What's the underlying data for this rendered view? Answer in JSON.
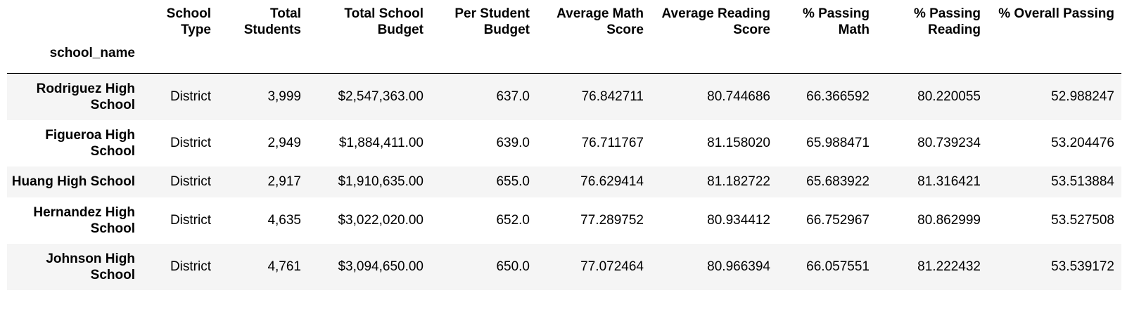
{
  "table": {
    "index_name": "school_name",
    "columns": [
      "School Type",
      "Total Students",
      "Total School Budget",
      "Per Student Budget",
      "Average Math Score",
      "Average Reading Score",
      "% Passing Math",
      "% Passing Reading",
      "% Overall Passing"
    ],
    "rows": [
      {
        "school_name": "Rodriguez High School",
        "values": [
          "District",
          "3,999",
          "$2,547,363.00",
          "637.0",
          "76.842711",
          "80.744686",
          "66.366592",
          "80.220055",
          "52.988247"
        ]
      },
      {
        "school_name": "Figueroa High School",
        "values": [
          "District",
          "2,949",
          "$1,884,411.00",
          "639.0",
          "76.711767",
          "81.158020",
          "65.988471",
          "80.739234",
          "53.204476"
        ]
      },
      {
        "school_name": "Huang High School",
        "values": [
          "District",
          "2,917",
          "$1,910,635.00",
          "655.0",
          "76.629414",
          "81.182722",
          "65.683922",
          "81.316421",
          "53.513884"
        ]
      },
      {
        "school_name": "Hernandez High School",
        "values": [
          "District",
          "4,635",
          "$3,022,020.00",
          "652.0",
          "77.289752",
          "80.934412",
          "66.752967",
          "80.862999",
          "53.527508"
        ]
      },
      {
        "school_name": "Johnson High School",
        "values": [
          "District",
          "4,761",
          "$3,094,650.00",
          "650.0",
          "77.072464",
          "80.966394",
          "66.057551",
          "81.222432",
          "53.539172"
        ]
      }
    ]
  }
}
